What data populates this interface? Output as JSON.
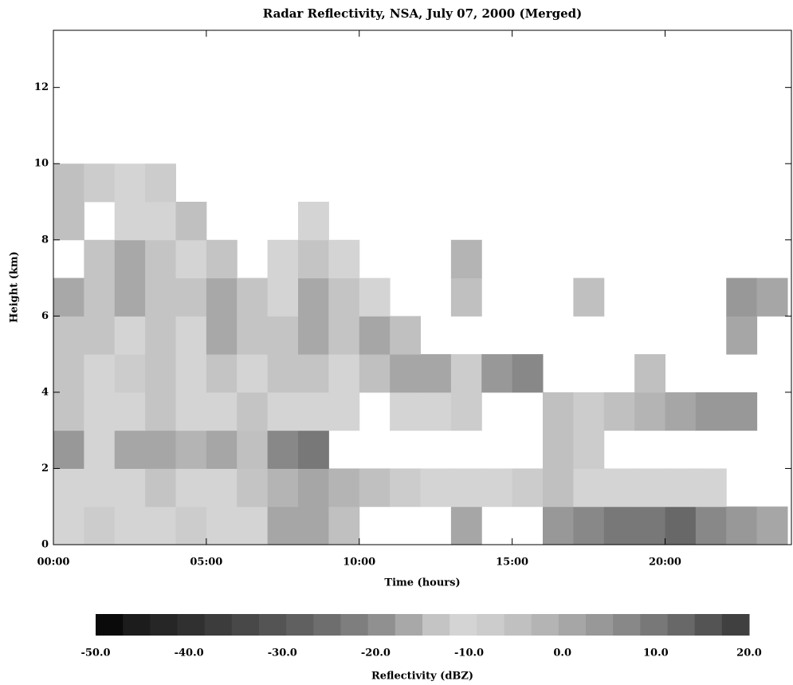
{
  "chart_data": {
    "type": "heatmap",
    "title": "Radar Reflectivity, NSA, July 07, 2000 (Merged)",
    "xlabel": "Time (hours)",
    "ylabel": "Height (km)",
    "xlim": [
      0,
      24
    ],
    "ylim": [
      0,
      13.5
    ],
    "xticks": [
      {
        "value": 0,
        "label": "00:00"
      },
      {
        "value": 5,
        "label": "05:00"
      },
      {
        "value": 10,
        "label": "10:00"
      },
      {
        "value": 15,
        "label": "15:00"
      },
      {
        "value": 20,
        "label": "20:00"
      }
    ],
    "yticks": [
      0,
      2,
      4,
      6,
      8,
      10,
      12
    ],
    "xbins": [
      0,
      1,
      2,
      3,
      4,
      5,
      6,
      7,
      8,
      9,
      10,
      11,
      12,
      13,
      14,
      15,
      16,
      17,
      18,
      19,
      20,
      21,
      22,
      23,
      24
    ],
    "ybins": [
      0,
      1,
      2,
      3,
      4,
      5,
      6,
      7,
      8,
      9,
      10
    ],
    "z": [
      [
        -12,
        -8,
        -10,
        -12,
        -8,
        -10,
        -12,
        0,
        2,
        -5,
        null,
        null,
        null,
        0,
        null,
        null,
        5,
        8,
        10,
        10,
        12,
        8,
        5,
        0
      ],
      [
        -12,
        -10,
        -12,
        -14,
        -10,
        -12,
        -14,
        -2,
        0,
        -2,
        -5,
        -8,
        -12,
        -10,
        -10,
        -8,
        -5,
        -10,
        -12,
        -10,
        -12,
        -10,
        null,
        null
      ],
      [
        5,
        -10,
        0,
        2,
        -2,
        0,
        -5,
        8,
        10,
        null,
        null,
        null,
        null,
        null,
        null,
        null,
        -5,
        -8,
        null,
        null,
        null,
        null,
        null,
        null
      ],
      [
        -14,
        -12,
        -10,
        -14,
        -12,
        -10,
        -14,
        -12,
        -12,
        -10,
        null,
        -12,
        -10,
        -8,
        null,
        null,
        -5,
        -8,
        -5,
        -2,
        0,
        5,
        5,
        null
      ],
      [
        -15,
        -12,
        -8,
        -14,
        -10,
        -15,
        -12,
        -14,
        -15,
        -12,
        -5,
        0,
        2,
        -8,
        5,
        8,
        null,
        null,
        null,
        -5,
        null,
        null,
        null,
        null
      ],
      [
        -15,
        -14,
        -10,
        -14,
        -12,
        -16,
        -14,
        -15,
        -16,
        -14,
        0,
        -5,
        null,
        null,
        null,
        null,
        null,
        null,
        null,
        null,
        null,
        null,
        0,
        null
      ],
      [
        -16,
        -14,
        -16,
        -15,
        -14,
        -16,
        -15,
        -12,
        -16,
        -15,
        -10,
        null,
        null,
        -5,
        null,
        null,
        null,
        -5,
        null,
        null,
        null,
        null,
        5,
        0
      ],
      [
        null,
        -14,
        -16,
        -15,
        -12,
        -15,
        null,
        -10,
        -14,
        -12,
        null,
        null,
        null,
        -2,
        null,
        null,
        null,
        null,
        null,
        null,
        null,
        null,
        null,
        null
      ],
      [
        -5,
        null,
        -12,
        -10,
        -5,
        null,
        null,
        null,
        -10,
        null,
        null,
        null,
        null,
        null,
        null,
        null,
        null,
        null,
        null,
        null,
        null,
        null,
        null,
        null
      ],
      [
        -5,
        -8,
        -10,
        -8,
        null,
        null,
        null,
        null,
        null,
        null,
        null,
        null,
        null,
        null,
        null,
        null,
        null,
        null,
        null,
        null,
        null,
        null,
        null,
        null
      ]
    ],
    "colorbar": {
      "label": "Reflectivity (dBZ)",
      "clim": [
        -50,
        20
      ],
      "ticks": [
        {
          "value": -50,
          "label": "-50.0"
        },
        {
          "value": -40,
          "label": "-40.0"
        },
        {
          "value": -30,
          "label": "-30.0"
        },
        {
          "value": -20,
          "label": "-20.0"
        },
        {
          "value": -10,
          "label": "-10.0"
        },
        {
          "value": 0,
          "label": "0.0"
        },
        {
          "value": 10,
          "label": "10.0"
        },
        {
          "value": 20,
          "label": "20.0"
        }
      ],
      "colors": [
        "#0a0a0a",
        "#1c1c1c",
        "#262626",
        "#303030",
        "#3c3c3c",
        "#484848",
        "#545454",
        "#606060",
        "#6e6e6e",
        "#7e7e7e",
        "#909090",
        "#a8a8a8",
        "#c4c4c4",
        "#d4d4d4",
        "#cccccc",
        "#c0c0c0",
        "#b4b4b4",
        "#a6a6a6",
        "#989898",
        "#888888",
        "#787878",
        "#686868",
        "#545454",
        "#404040"
      ]
    }
  }
}
